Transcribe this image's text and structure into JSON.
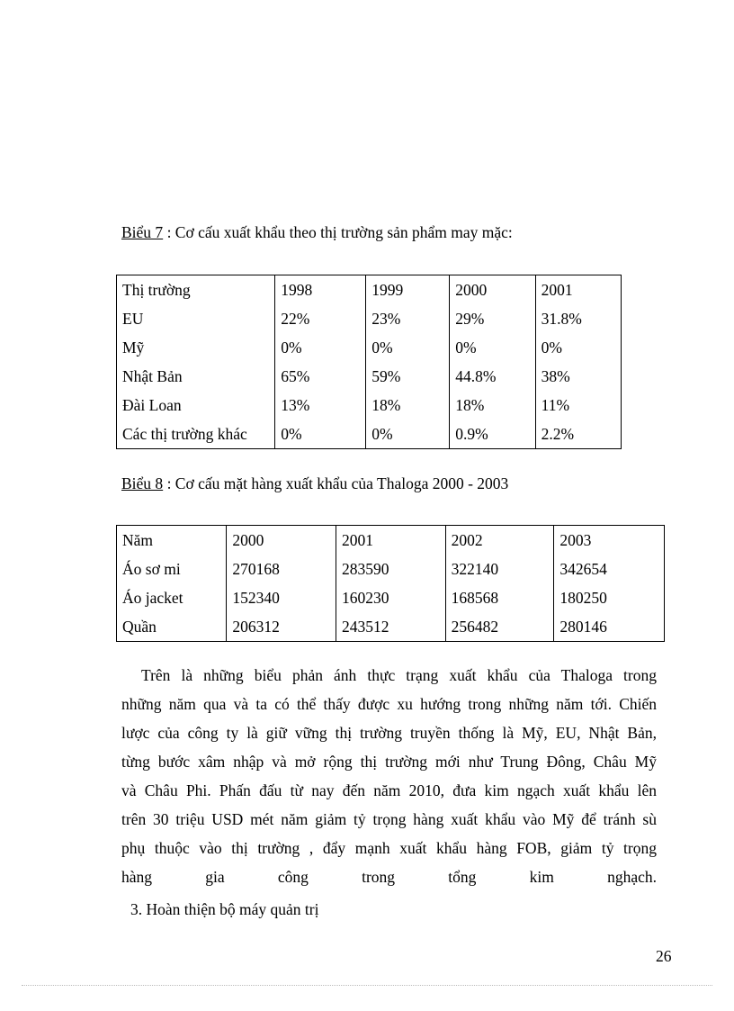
{
  "table1": {
    "caption_label": "Biểu 7",
    "caption_text": " : Cơ cấu xuất khẩu theo thị trường sản phẩm may mặc:",
    "header": [
      "Thị trường",
      "1998",
      "1999",
      "2000",
      "2001"
    ],
    "rows": [
      [
        "EU",
        "22%",
        "23%",
        "29%",
        "31.8%"
      ],
      [
        "Mỹ",
        "0%",
        "0%",
        "0%",
        "0%"
      ],
      [
        "Nhật Bản",
        "65%",
        "59%",
        "44.8%",
        "38%"
      ],
      [
        "Đài Loan",
        "13%",
        "18%",
        "18%",
        "11%"
      ],
      [
        "Các thị trường khác",
        "0%",
        "0%",
        "0.9%",
        "2.2%"
      ]
    ]
  },
  "table2": {
    "caption_label": "Biểu 8",
    "caption_text": " : Cơ cấu mặt hàng xuất khẩu của Thaloga 2000 - 2003",
    "header": [
      "Năm",
      "2000",
      "2001",
      "2002",
      "2003"
    ],
    "rows": [
      [
        "Áo sơ mi",
        "270168",
        "283590",
        "322140",
        "342654"
      ],
      [
        "Áo jacket",
        "152340",
        "160230",
        "168568",
        "180250"
      ],
      [
        "Quần",
        "206312",
        "243512",
        "256482",
        "280146"
      ]
    ]
  },
  "paragraph_lines": [
    "Trên là những biểu phản ánh thực trạng xuất khẩu của Thaloga trong",
    "những năm qua và ta có thể thấy được xu hướng trong những năm tới. Chiến",
    "lược của công ty là giữ vững thị trường truyền thống là Mỹ, EU, Nhật Bản,",
    "từng bước xâm nhập và mở rộng thị trường mới như Trung Đông, Châu Mỹ",
    "và Châu Phi. Phấn đấu từ nay đến năm 2010, đưa kim ngạch xuất khẩu lên",
    "trên 30 triệu USD mét năm giảm tỷ trọng hàng xuất khẩu vào Mỹ để tránh sù",
    "phụ thuộc vào thị trường , đẩy mạnh xuất khẩu hàng FOB, giảm tỷ trọng",
    "hàng gia công trong tổng kim nghạch."
  ],
  "section_heading": "3. Hoàn thiện bộ máy quản trị",
  "page_number": "26"
}
